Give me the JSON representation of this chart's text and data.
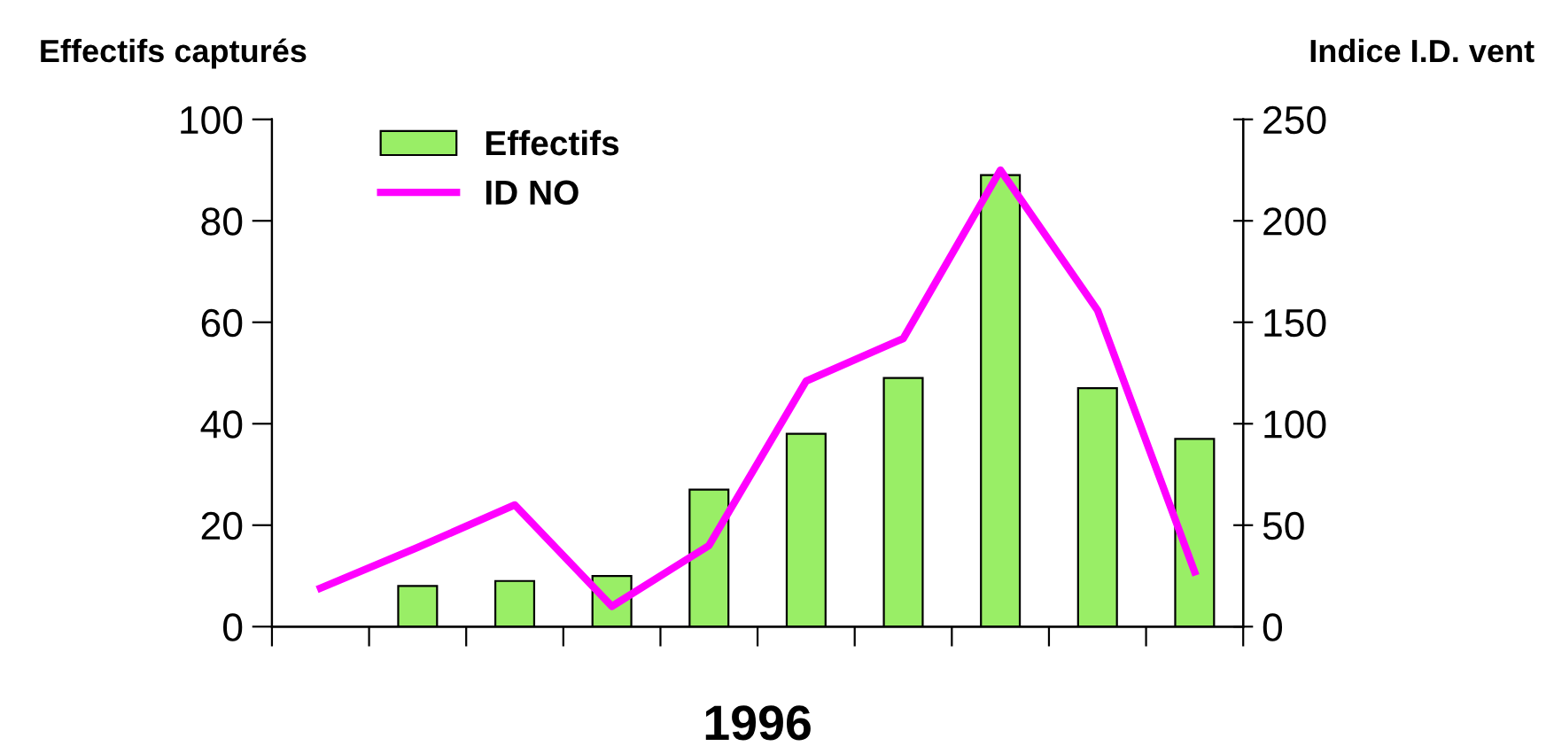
{
  "chart_data": {
    "type": "bar",
    "xlabel": "1996",
    "ylabel": "Effectifs capturés",
    "y2label": "Indice I.D. vent",
    "categories": [
      null,
      null,
      null,
      null,
      null,
      null,
      null,
      null,
      null,
      null
    ],
    "series": [
      {
        "name": "Effectifs",
        "color": "#99ee66",
        "values": [
          null,
          8,
          9,
          10,
          27,
          38,
          49,
          89,
          47,
          37
        ]
      },
      {
        "name": "ID NO",
        "type": "line",
        "axis": "y2",
        "color": "#ff00ff",
        "values": [
          19,
          39,
          60,
          10,
          40,
          121,
          142,
          225,
          156,
          27
        ]
      }
    ],
    "ylim": [
      0,
      100
    ],
    "yticks": [
      0,
      20,
      40,
      60,
      80,
      100
    ],
    "y2lim": [
      0,
      250
    ],
    "y2ticks": [
      0,
      50,
      100,
      150,
      200,
      250
    ],
    "legend": "top left",
    "grid": false,
    "marker": "none",
    "line_style": "solid"
  }
}
